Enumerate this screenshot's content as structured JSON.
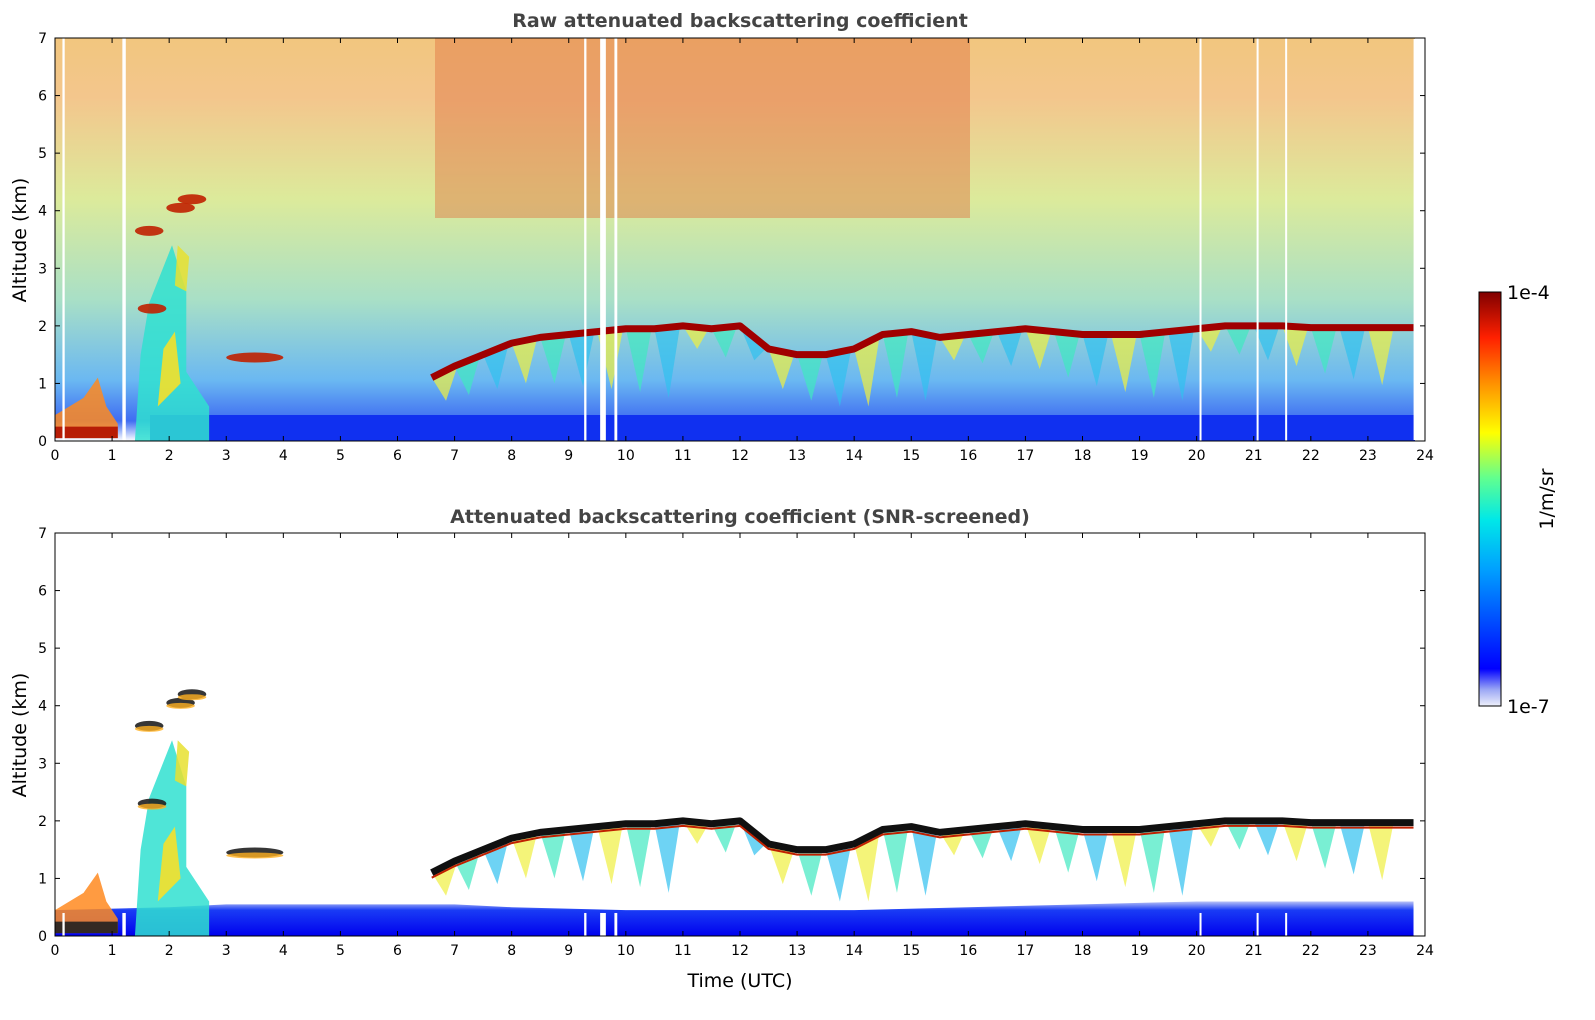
{
  "chart_data": [
    {
      "type": "heatmap",
      "title": "Raw attenuated backscattering coefficient",
      "xlabel": "",
      "ylabel": "Altitude (km)",
      "xlim": [
        0,
        24
      ],
      "ylim": [
        0,
        7
      ],
      "xticks": [
        0,
        1,
        2,
        3,
        4,
        5,
        6,
        7,
        8,
        9,
        10,
        11,
        12,
        13,
        14,
        15,
        16,
        17,
        18,
        19,
        20,
        21,
        22,
        23,
        24
      ],
      "yticks": [
        0,
        1,
        2,
        3,
        4,
        5,
        6,
        7
      ],
      "data_extent_hours": [
        0,
        23.8
      ],
      "surface_layer_top_km": 0.45,
      "cloud_layer": {
        "x": [
          6.6,
          7.0,
          7.5,
          8.0,
          8.5,
          9.0,
          9.5,
          10.0,
          10.5,
          11.0,
          11.5,
          12.0,
          12.5,
          13.0,
          13.5,
          14.0,
          14.5,
          15.0,
          15.5,
          16.0,
          16.5,
          17.0,
          17.5,
          18.0,
          18.5,
          19.0,
          19.5,
          20.0,
          20.5,
          21.0,
          21.5,
          22.0,
          22.5,
          23.0,
          23.8
        ],
        "y": [
          1.1,
          1.3,
          1.5,
          1.7,
          1.8,
          1.85,
          1.9,
          1.95,
          1.95,
          2.0,
          1.95,
          2.0,
          1.6,
          1.5,
          1.5,
          1.6,
          1.85,
          1.9,
          1.8,
          1.85,
          1.9,
          1.95,
          1.9,
          1.85,
          1.85,
          1.85,
          1.9,
          1.95,
          2.0,
          2.0,
          2.0,
          1.97,
          1.97,
          1.97,
          1.97
        ]
      },
      "aerosol_plumes": [
        {
          "x": 1.65,
          "y": 3.65
        },
        {
          "x": 2.2,
          "y": 4.05
        },
        {
          "x": 2.4,
          "y": 4.2
        },
        {
          "x": 1.7,
          "y": 2.3
        },
        {
          "x": 3.5,
          "y": 1.45
        }
      ]
    },
    {
      "type": "heatmap",
      "title": "Attenuated backscattering coefficient (SNR-screened)",
      "xlabel": "Time (UTC)",
      "ylabel": "Altitude (km)",
      "xlim": [
        0,
        24
      ],
      "ylim": [
        0,
        7
      ],
      "xticks": [
        0,
        1,
        2,
        3,
        4,
        5,
        6,
        7,
        8,
        9,
        10,
        11,
        12,
        13,
        14,
        15,
        16,
        17,
        18,
        19,
        20,
        21,
        22,
        23,
        24
      ],
      "yticks": [
        0,
        1,
        2,
        3,
        4,
        5,
        6,
        7
      ],
      "data_extent_hours": [
        0,
        23.8
      ],
      "boundary_layer": {
        "x": [
          0,
          2,
          3,
          4,
          5,
          6,
          7,
          8,
          10,
          12,
          14,
          16,
          18,
          20,
          22,
          23.8
        ],
        "y": [
          0.45,
          0.5,
          0.55,
          0.55,
          0.55,
          0.55,
          0.55,
          0.5,
          0.45,
          0.45,
          0.45,
          0.5,
          0.55,
          0.6,
          0.6,
          0.6
        ]
      },
      "cloud_layer": {
        "x": [
          6.6,
          7.0,
          7.5,
          8.0,
          8.5,
          9.0,
          9.5,
          10.0,
          10.5,
          11.0,
          11.5,
          12.0,
          12.5,
          13.0,
          13.5,
          14.0,
          14.5,
          15.0,
          15.5,
          16.0,
          16.5,
          17.0,
          17.5,
          18.0,
          18.5,
          19.0,
          19.5,
          20.0,
          20.5,
          21.0,
          21.5,
          22.0,
          22.5,
          23.0,
          23.8
        ],
        "y": [
          1.1,
          1.3,
          1.5,
          1.7,
          1.8,
          1.85,
          1.9,
          1.95,
          1.95,
          2.0,
          1.95,
          2.0,
          1.6,
          1.5,
          1.5,
          1.6,
          1.85,
          1.9,
          1.8,
          1.85,
          1.9,
          1.95,
          1.9,
          1.85,
          1.85,
          1.85,
          1.9,
          1.95,
          2.0,
          2.0,
          2.0,
          1.97,
          1.97,
          1.97,
          1.97
        ]
      }
    }
  ],
  "colorbar": {
    "label": "1/m/sr",
    "max_label": "1e-4",
    "min_label": "1e-7",
    "colormap": "jet",
    "colors": [
      "#eef0fa",
      "#0000ff",
      "#00a0ff",
      "#00e8e8",
      "#60ff90",
      "#ffff00",
      "#ff9000",
      "#ff2000",
      "#800000"
    ]
  }
}
